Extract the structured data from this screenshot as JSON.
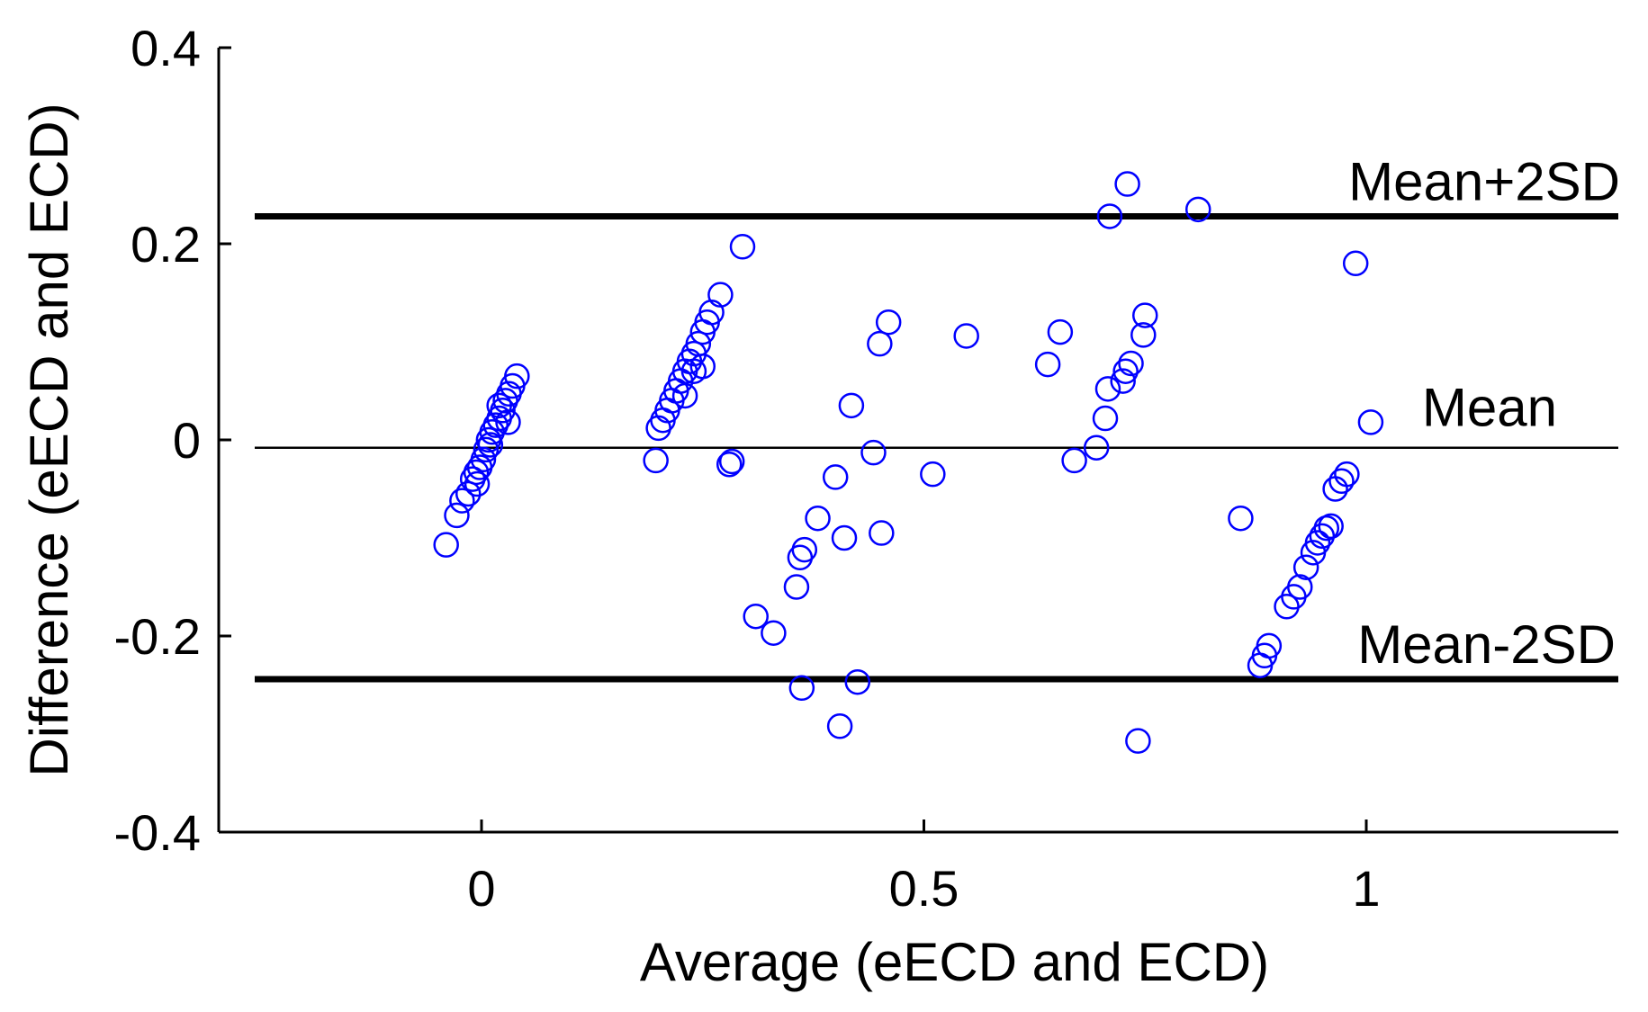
{
  "chart_data": {
    "type": "scatter",
    "title": "",
    "xlabel": "Average (eECD and ECD)",
    "ylabel": "Difference (eECD and ECD)",
    "xlim": [
      -0.3,
      1.3
    ],
    "ylim": [
      -0.4,
      0.4
    ],
    "xticks": [
      0,
      0.5,
      1
    ],
    "xtick_labels": [
      "0",
      "0.5",
      "1"
    ],
    "yticks": [
      0.4,
      0.2,
      0,
      -0.2,
      -0.4
    ],
    "ytick_labels": [
      "0.4",
      "0.2",
      "0",
      "-0.2",
      "-0.4"
    ],
    "grid": false,
    "marker": "open-circle",
    "marker_color": "#0000ff",
    "reference_lines": [
      {
        "name": "mean-plus-2sd",
        "label": "Mean+2SD",
        "y": 0.228,
        "weight": "thick"
      },
      {
        "name": "mean",
        "label": "Mean",
        "y": -0.008,
        "weight": "thin"
      },
      {
        "name": "mean-minus-2sd",
        "label": "Mean-2SD",
        "y": -0.244,
        "weight": "thick"
      }
    ],
    "points": [
      {
        "x": -0.04,
        "y": -0.107
      },
      {
        "x": -0.028,
        "y": -0.077
      },
      {
        "x": -0.022,
        "y": -0.062
      },
      {
        "x": -0.015,
        "y": -0.055
      },
      {
        "x": -0.01,
        "y": -0.04
      },
      {
        "x": -0.006,
        "y": -0.033
      },
      {
        "x": -0.002,
        "y": -0.028
      },
      {
        "x": 0.002,
        "y": -0.02
      },
      {
        "x": 0.005,
        "y": -0.01
      },
      {
        "x": 0.008,
        "y": 0.0
      },
      {
        "x": 0.012,
        "y": 0.008
      },
      {
        "x": 0.016,
        "y": 0.015
      },
      {
        "x": 0.02,
        "y": 0.022
      },
      {
        "x": 0.024,
        "y": 0.03
      },
      {
        "x": 0.027,
        "y": 0.04
      },
      {
        "x": 0.031,
        "y": 0.047
      },
      {
        "x": 0.035,
        "y": 0.055
      },
      {
        "x": 0.04,
        "y": 0.065
      },
      {
        "x": 0.03,
        "y": 0.018
      },
      {
        "x": 0.01,
        "y": -0.005
      },
      {
        "x": -0.005,
        "y": -0.045
      },
      {
        "x": 0.02,
        "y": 0.035
      },
      {
        "x": 0.197,
        "y": -0.021
      },
      {
        "x": 0.2,
        "y": 0.012
      },
      {
        "x": 0.205,
        "y": 0.02
      },
      {
        "x": 0.21,
        "y": 0.03
      },
      {
        "x": 0.215,
        "y": 0.04
      },
      {
        "x": 0.22,
        "y": 0.05
      },
      {
        "x": 0.225,
        "y": 0.06
      },
      {
        "x": 0.23,
        "y": 0.07
      },
      {
        "x": 0.235,
        "y": 0.08
      },
      {
        "x": 0.24,
        "y": 0.088
      },
      {
        "x": 0.245,
        "y": 0.098
      },
      {
        "x": 0.25,
        "y": 0.11
      },
      {
        "x": 0.255,
        "y": 0.12
      },
      {
        "x": 0.26,
        "y": 0.13
      },
      {
        "x": 0.27,
        "y": 0.148
      },
      {
        "x": 0.24,
        "y": 0.07
      },
      {
        "x": 0.25,
        "y": 0.075
      },
      {
        "x": 0.23,
        "y": 0.045
      },
      {
        "x": 0.28,
        "y": -0.025
      },
      {
        "x": 0.283,
        "y": -0.022
      },
      {
        "x": 0.295,
        "y": 0.197
      },
      {
        "x": 0.31,
        "y": -0.18
      },
      {
        "x": 0.33,
        "y": -0.197
      },
      {
        "x": 0.356,
        "y": -0.15
      },
      {
        "x": 0.36,
        "y": -0.12
      },
      {
        "x": 0.365,
        "y": -0.112
      },
      {
        "x": 0.362,
        "y": -0.253
      },
      {
        "x": 0.38,
        "y": -0.08
      },
      {
        "x": 0.4,
        "y": -0.038
      },
      {
        "x": 0.405,
        "y": -0.292
      },
      {
        "x": 0.41,
        "y": -0.1
      },
      {
        "x": 0.418,
        "y": 0.035
      },
      {
        "x": 0.425,
        "y": -0.247
      },
      {
        "x": 0.443,
        "y": -0.013
      },
      {
        "x": 0.45,
        "y": 0.098
      },
      {
        "x": 0.452,
        "y": -0.095
      },
      {
        "x": 0.46,
        "y": 0.12
      },
      {
        "x": 0.51,
        "y": -0.035
      },
      {
        "x": 0.548,
        "y": 0.106
      },
      {
        "x": 0.64,
        "y": 0.077
      },
      {
        "x": 0.654,
        "y": 0.11
      },
      {
        "x": 0.67,
        "y": -0.021
      },
      {
        "x": 0.695,
        "y": -0.008
      },
      {
        "x": 0.705,
        "y": 0.022
      },
      {
        "x": 0.708,
        "y": 0.052
      },
      {
        "x": 0.71,
        "y": 0.228
      },
      {
        "x": 0.725,
        "y": 0.06
      },
      {
        "x": 0.728,
        "y": 0.07
      },
      {
        "x": 0.73,
        "y": 0.261
      },
      {
        "x": 0.734,
        "y": 0.078
      },
      {
        "x": 0.742,
        "y": -0.307
      },
      {
        "x": 0.748,
        "y": 0.107
      },
      {
        "x": 0.75,
        "y": 0.127
      },
      {
        "x": 0.81,
        "y": 0.235
      },
      {
        "x": 0.858,
        "y": -0.08
      },
      {
        "x": 0.88,
        "y": -0.23
      },
      {
        "x": 0.885,
        "y": -0.22
      },
      {
        "x": 0.89,
        "y": -0.21
      },
      {
        "x": 0.91,
        "y": -0.17
      },
      {
        "x": 0.918,
        "y": -0.16
      },
      {
        "x": 0.925,
        "y": -0.15
      },
      {
        "x": 0.932,
        "y": -0.13
      },
      {
        "x": 0.94,
        "y": -0.115
      },
      {
        "x": 0.945,
        "y": -0.105
      },
      {
        "x": 0.95,
        "y": -0.098
      },
      {
        "x": 0.955,
        "y": -0.09
      },
      {
        "x": 0.96,
        "y": -0.088
      },
      {
        "x": 0.965,
        "y": -0.05
      },
      {
        "x": 0.972,
        "y": -0.042
      },
      {
        "x": 0.978,
        "y": -0.035
      },
      {
        "x": 0.988,
        "y": 0.18
      },
      {
        "x": 1.005,
        "y": 0.018
      }
    ]
  }
}
